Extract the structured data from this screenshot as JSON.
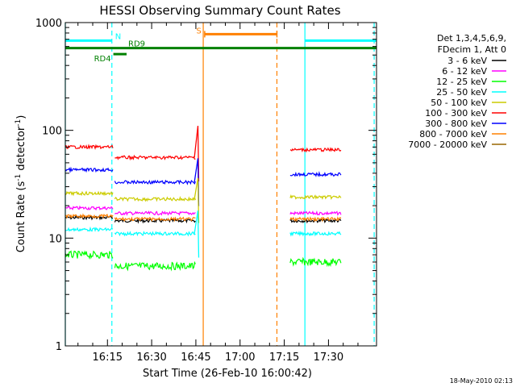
{
  "chart_data": {
    "type": "line",
    "title": "HESSI Observing Summary Count Rates",
    "xlabel": "Start Time (26-Feb-10 16:00:42)",
    "ylabel_prefix": "Count Rate (s",
    "ylabel_sup1": "-1",
    "ylabel_mid": " detector",
    "ylabel_sup2": "-1",
    "ylabel_suffix": ")",
    "yscale": "log",
    "ylim": [
      1,
      1000
    ],
    "xlim_min": [
      0.7,
      106.3
    ],
    "grid": false,
    "legend_placement": "right",
    "x_ticks": [
      {
        "value": 15,
        "label": "16:15"
      },
      {
        "value": 30,
        "label": "16:30"
      },
      {
        "value": 45,
        "label": "16:45"
      },
      {
        "value": 60,
        "label": "17:00"
      },
      {
        "value": 75,
        "label": "17:15"
      },
      {
        "value": 90,
        "label": "17:30"
      }
    ],
    "y_ticks": [
      {
        "value": 1,
        "label": "1"
      },
      {
        "value": 10,
        "label": "10"
      },
      {
        "value": 100,
        "label": "100"
      },
      {
        "value": 1000,
        "label": "1000"
      }
    ],
    "legend_header": [
      "Det 1,3,4,5,6,9,",
      "FDecim 1, Att 0"
    ],
    "series": [
      {
        "name": "3 - 6 keV",
        "color": "#000000",
        "segments": [
          {
            "x": [
              0.7,
              17.0
            ],
            "y": 15.5
          },
          {
            "x": [
              17.5,
              45.0
            ],
            "y": 14.5
          },
          {
            "x": [
              77.0,
              94.5
            ],
            "y": 14.5
          }
        ]
      },
      {
        "name": "6 - 12 keV",
        "color": "#ff00ff",
        "segments": [
          {
            "x": [
              0.7,
              17.0
            ],
            "y": 19
          },
          {
            "x": [
              17.5,
              45.0
            ],
            "y": 17
          },
          {
            "x": [
              77.0,
              94.5
            ],
            "y": 17
          }
        ]
      },
      {
        "name": "12 - 25 keV",
        "color": "#00ff00",
        "segments": [
          {
            "x": [
              0.7,
              17.0
            ],
            "y": 7
          },
          {
            "x": [
              17.5,
              45.0
            ],
            "y": 5.5
          },
          {
            "x": [
              77.0,
              94.5
            ],
            "y": 6
          }
        ]
      },
      {
        "name": "25 - 50 keV",
        "color": "#00ffff",
        "segments": [
          {
            "x": [
              0.7,
              17.0
            ],
            "y": 12
          },
          {
            "x": [
              17.5,
              45.0
            ],
            "y": 11
          },
          {
            "x": [
              77.0,
              94.5
            ],
            "y": 11
          }
        ]
      },
      {
        "name": "50 - 100 keV",
        "color": "#cccc00",
        "segments": [
          {
            "x": [
              0.7,
              17.0
            ],
            "y": 26
          },
          {
            "x": [
              17.5,
              45.0
            ],
            "y": 23
          },
          {
            "x": [
              77.0,
              94.5
            ],
            "y": 24
          }
        ]
      },
      {
        "name": "100 - 300 keV",
        "color": "#ff0000",
        "segments": [
          {
            "x": [
              0.7,
              17.0
            ],
            "y": 70
          },
          {
            "x": [
              17.5,
              45.0
            ],
            "y": 56
          },
          {
            "x": [
              77.0,
              94.5
            ],
            "y": 66
          }
        ]
      },
      {
        "name": "300 - 800 keV",
        "color": "#0000ff",
        "segments": [
          {
            "x": [
              0.7,
              17.0
            ],
            "y": 43
          },
          {
            "x": [
              17.5,
              45.0
            ],
            "y": 33
          },
          {
            "x": [
              77.0,
              94.5
            ],
            "y": 39
          }
        ]
      },
      {
        "name": "800 - 7000 keV",
        "color": "#ff8000",
        "segments": [
          {
            "x": [
              0.7,
              17.0
            ],
            "y": 16
          },
          {
            "x": [
              17.5,
              45.0
            ],
            "y": 15
          },
          {
            "x": [
              77.0,
              94.5
            ],
            "y": 15
          }
        ]
      },
      {
        "name": "7000 - 20000 keV",
        "color": "#996600",
        "segments": []
      }
    ],
    "intervals": [
      {
        "label": "N",
        "color": "#00ffff",
        "x": [
          0.7,
          16.5
        ],
        "y": 680
      },
      {
        "label": "",
        "color": "#00ffff",
        "x": [
          82.0,
          106.3
        ],
        "y": 680
      },
      {
        "label": "S",
        "color": "#ff8000",
        "x": [
          48.0,
          72.5
        ],
        "y": 780
      },
      {
        "label": "",
        "color": "#008000",
        "x": [
          0.7,
          106.3
        ],
        "y": 580
      },
      {
        "label": "RD4",
        "color": "#008000",
        "x": [
          17.0,
          21.5
        ],
        "y": 510
      },
      {
        "label": "RD9",
        "color": "#008000",
        "x": [
          21.5,
          21.5
        ],
        "y": 590
      }
    ],
    "vertical_lines": [
      {
        "x": 0.7,
        "color": "#00ffff",
        "dashed": false
      },
      {
        "x": 16.5,
        "color": "#00ffff",
        "dashed": true
      },
      {
        "x": 47.5,
        "color": "#ff8000",
        "dashed": false
      },
      {
        "x": 72.5,
        "color": "#ff8000",
        "dashed": true
      },
      {
        "x": 82.0,
        "color": "#00ffff",
        "dashed": false
      },
      {
        "x": 105.5,
        "color": "#00ffff",
        "dashed": true
      }
    ]
  },
  "footer": {
    "timestamp": "18-May-2010 02:13"
  }
}
